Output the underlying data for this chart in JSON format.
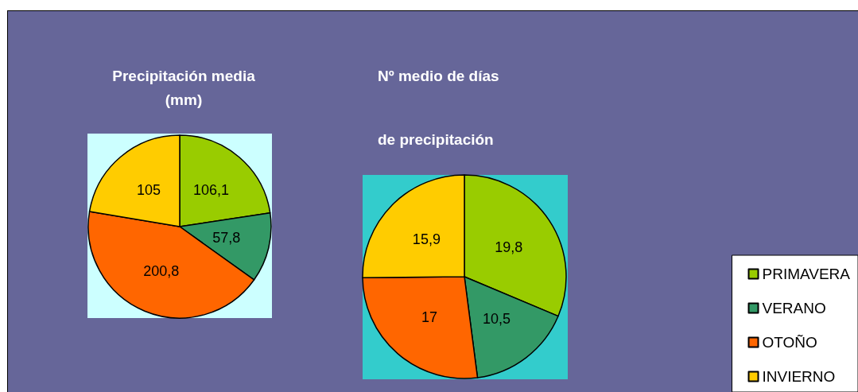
{
  "chart_data": [
    {
      "type": "pie",
      "title": "Precipitación media\n(mm)",
      "categories": [
        null,
        null,
        null,
        null
      ],
      "values": [
        106.1,
        57.8,
        200.8,
        105
      ],
      "value_labels": [
        "106,1",
        "57,8",
        "200,8",
        "105"
      ],
      "colors": [
        "#99cc00",
        "#339966",
        "#ff6600",
        "#ffcc00"
      ]
    },
    {
      "type": "pie",
      "title": "Nº medio de días\nde precipitación",
      "categories": [
        "PRIMAVERA",
        "VERANO",
        "OTOÑO",
        "INVIERNO"
      ],
      "values": [
        19.8,
        10.5,
        17,
        15.9
      ],
      "value_labels": [
        "19,8",
        "10,5",
        "17",
        "15,9"
      ],
      "colors": [
        "#99cc00",
        "#339966",
        "#ff6600",
        "#ffcc00"
      ],
      "legend": "bottom right"
    }
  ]
}
